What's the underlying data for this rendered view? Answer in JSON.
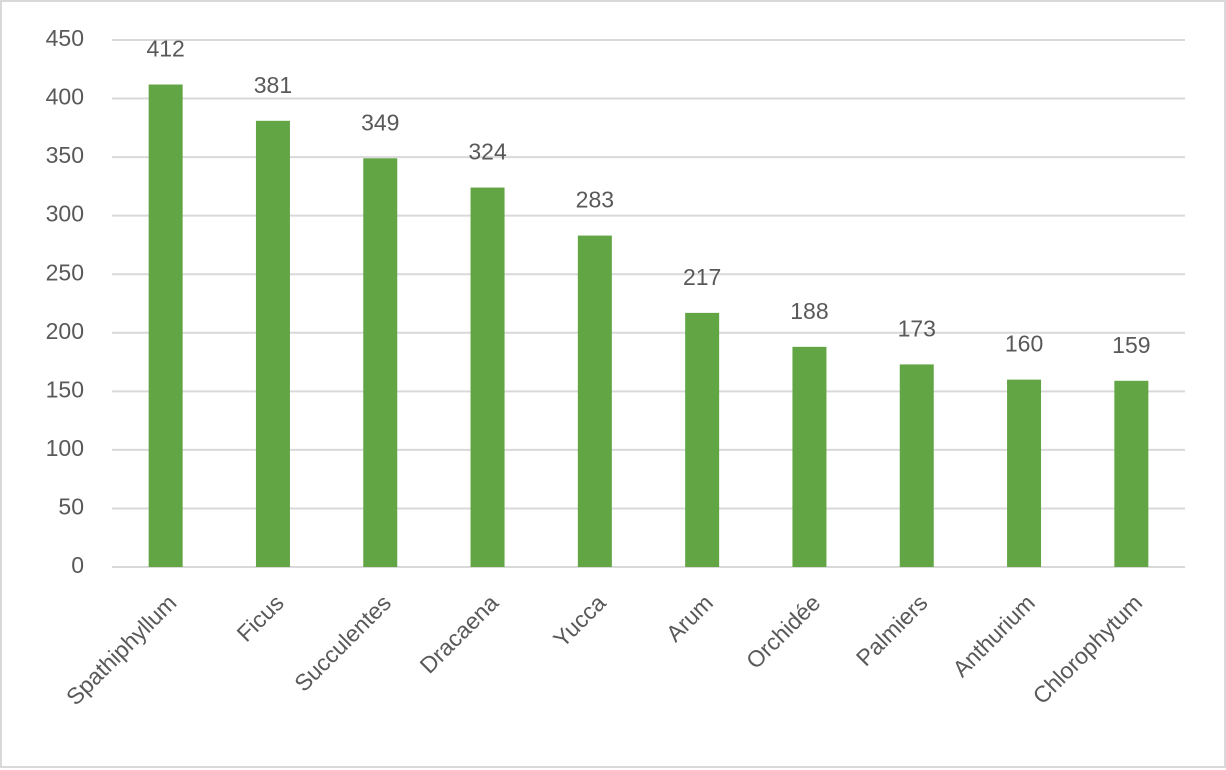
{
  "chart_data": {
    "type": "bar",
    "categories": [
      "Spathiphyllum",
      "Ficus",
      "Succulentes",
      "Dracaena",
      "Yucca",
      "Arum",
      "Orchidée",
      "Palmiers",
      "Anthurium",
      "Chlorophytum"
    ],
    "values": [
      412,
      381,
      349,
      324,
      283,
      217,
      188,
      173,
      160,
      159
    ],
    "color": "#62a544",
    "ylim": [
      0,
      450
    ],
    "yticks": [
      0,
      50,
      100,
      150,
      200,
      250,
      300,
      350,
      400,
      450
    ],
    "grid": true
  }
}
